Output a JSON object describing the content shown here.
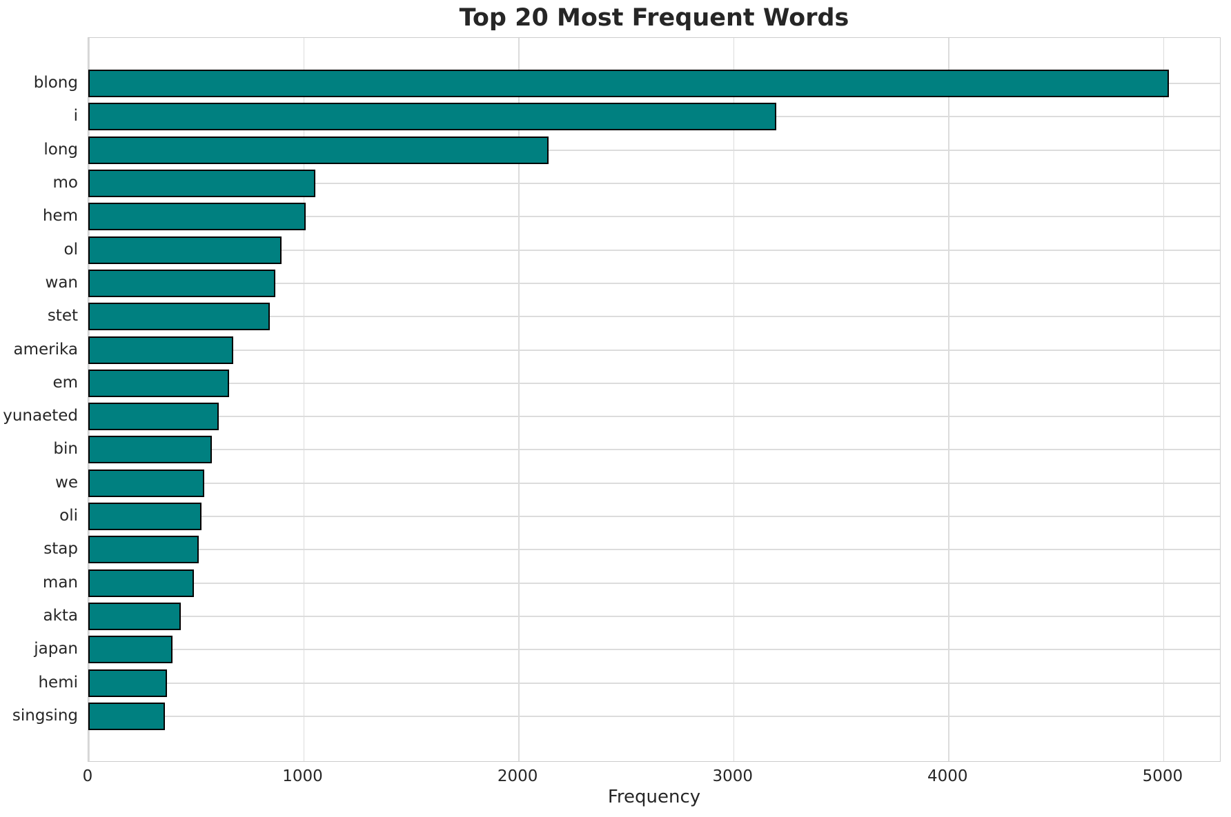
{
  "chart_data": {
    "type": "bar",
    "orientation": "horizontal",
    "title": "Top 20 Most Frequent Words",
    "xlabel": "Frequency",
    "ylabel": "",
    "categories": [
      "blong",
      "i",
      "long",
      "mo",
      "hem",
      "ol",
      "wan",
      "stet",
      "amerika",
      "em",
      "yunaeted",
      "bin",
      "we",
      "oli",
      "stap",
      "man",
      "akta",
      "japan",
      "hemi",
      "singsing"
    ],
    "values": [
      5025,
      3200,
      2140,
      1055,
      1010,
      900,
      870,
      845,
      675,
      655,
      605,
      575,
      540,
      527,
      515,
      490,
      430,
      390,
      365,
      355
    ],
    "xticks": [
      0,
      1000,
      2000,
      3000,
      4000,
      5000
    ],
    "xlim": [
      0,
      5270
    ],
    "grid": true,
    "legend": "none",
    "bar_color": "#008080",
    "bar_edge_color": "#000000",
    "grid_color": "#dcdcdc",
    "spine_color": "#cccccc",
    "text_color": "#262626",
    "background_color": "#ffffff"
  }
}
